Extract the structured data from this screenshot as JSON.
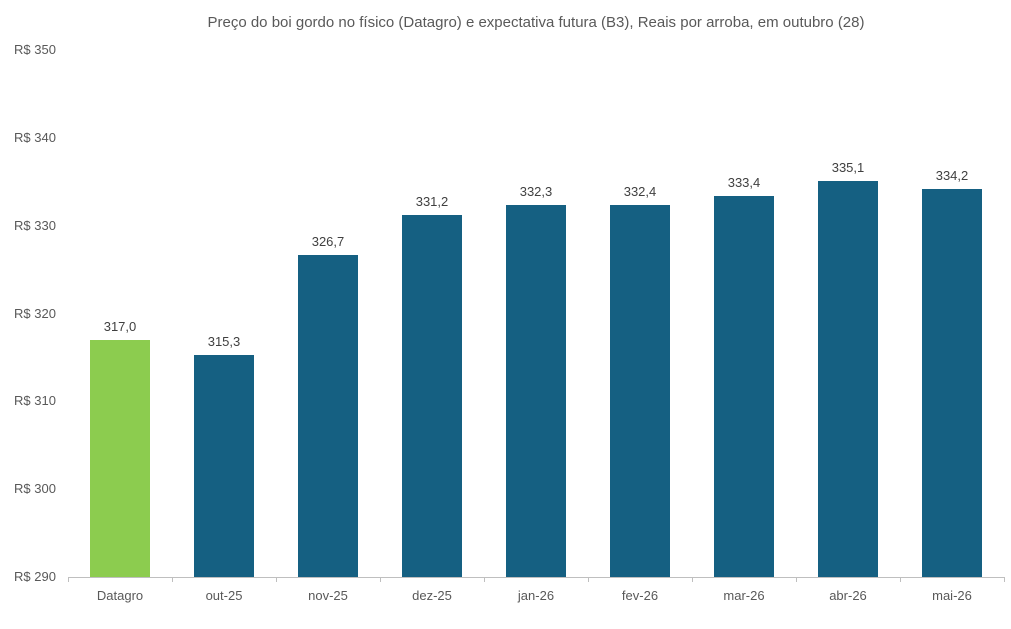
{
  "chart_data": {
    "type": "bar",
    "title": "Preço do boi gordo no físico (Datagro)  e expectativa futura (B3), Reais por arroba, em outubro (28)",
    "categories": [
      "Datagro",
      "out-25",
      "nov-25",
      "dez-25",
      "jan-26",
      "fev-26",
      "mar-26",
      "abr-26",
      "mai-26"
    ],
    "values": [
      317.0,
      315.3,
      326.7,
      331.2,
      332.3,
      332.4,
      333.4,
      335.1,
      334.2
    ],
    "value_labels": [
      "317,0",
      "315,3",
      "326,7",
      "331,2",
      "332,3",
      "332,4",
      "333,4",
      "335,1",
      "334,2"
    ],
    "xlabel": "",
    "ylabel": "",
    "ylim": [
      290,
      350
    ],
    "y_ticks": [
      {
        "value": 350,
        "label": "R$ 350"
      },
      {
        "value": 340,
        "label": "R$ 340"
      },
      {
        "value": 330,
        "label": "R$ 330"
      },
      {
        "value": 320,
        "label": "R$ 320"
      },
      {
        "value": 310,
        "label": "R$ 310"
      },
      {
        "value": 300,
        "label": "R$ 300"
      },
      {
        "value": 290,
        "label": "R$ 290"
      }
    ],
    "grid": false,
    "legend": "none",
    "highlight_index": 0,
    "colors": {
      "highlight_bar": "#8ccc4f",
      "default_bar": "#156082",
      "title_text": "#595959",
      "axis_label_text": "#595959",
      "value_label_text": "#404040",
      "axis_line": "#bfbfbf",
      "background": "#ffffff"
    }
  }
}
